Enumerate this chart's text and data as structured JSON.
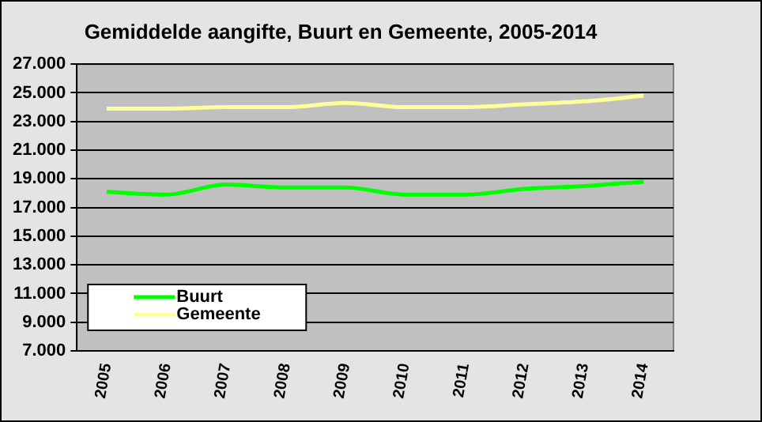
{
  "chart_data": {
    "type": "line",
    "title": "Gemiddelde aangifte, Buurt en Gemeente, 2005-2014",
    "categories": [
      "2005",
      "2006",
      "2007",
      "2008",
      "2009",
      "2010",
      "2011",
      "2012",
      "2013",
      "2014"
    ],
    "series": [
      {
        "name": "Buurt",
        "color": "#00ff00",
        "values": [
          18100,
          17900,
          18600,
          18400,
          18400,
          17900,
          17900,
          18300,
          18500,
          18800
        ]
      },
      {
        "name": "Gemeente",
        "color": "#ffff99",
        "values": [
          23900,
          23900,
          24000,
          24000,
          24300,
          24000,
          24000,
          24200,
          24400,
          24800
        ]
      }
    ],
    "ylim": [
      7000,
      27000
    ],
    "yticks": [
      {
        "value": 7000,
        "label": "7.000"
      },
      {
        "value": 9000,
        "label": "9.000"
      },
      {
        "value": 11000,
        "label": "11.000"
      },
      {
        "value": 13000,
        "label": "13.000"
      },
      {
        "value": 15000,
        "label": "15.000"
      },
      {
        "value": 17000,
        "label": "17.000"
      },
      {
        "value": 19000,
        "label": "19.000"
      },
      {
        "value": 21000,
        "label": "21.000"
      },
      {
        "value": 23000,
        "label": "23.000"
      },
      {
        "value": 25000,
        "label": "25.000"
      },
      {
        "value": 27000,
        "label": "27.000"
      }
    ],
    "grid": "y",
    "legend": "bottom left",
    "marker": "none",
    "line_style": "solid"
  }
}
